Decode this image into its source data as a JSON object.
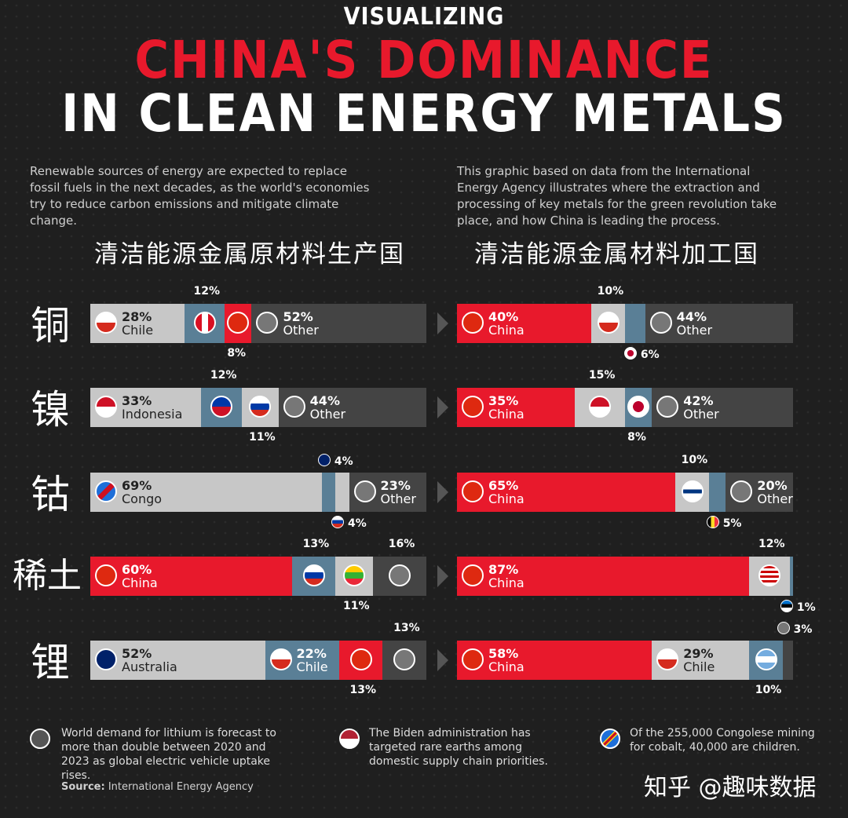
{
  "header": {
    "line1": "VISUALIZING",
    "line2": "CHINA'S DOMINANCE",
    "line3": "IN CLEAN ENERGY METALS"
  },
  "intro": {
    "left": "Renewable sources of energy are expected to replace fossil fuels in the next decades, as the world's economies try to reduce carbon emissions and mitigate climate change.",
    "right": "This graphic based on data from the International Energy Agency illustrates where the extraction and processing of key metals for the green revolution take place, and how China is leading the process."
  },
  "headings": {
    "left": "清洁能源金属原材料生产国",
    "right": "清洁能源金属材料加工国"
  },
  "footer": {
    "note1": "World demand for lithium is forecast to more than double between 2020 and 2023 as global electric vehicle uptake rises.",
    "note2": "The Biden administration has targeted rare earths among domestic supply chain priorities.",
    "note3": "Of the 255,000 Congolese mining for cobalt, 40,000 are children.",
    "source_label": "Source:",
    "source": "International Energy Agency",
    "watermark": "知乎 @趣味数据"
  },
  "colors": {
    "china_red": "#e8192c",
    "segment_gray": "#c7c7c7",
    "segment_blue": "#5a7f96",
    "other_dark": "#444444",
    "background": "#1f1f1f"
  },
  "chart_data": [
    {
      "type": "bar",
      "title": "清洁能源金属原材料生产国",
      "orientation": "horizontal-stacked",
      "rows": [
        {
          "metal": "铜",
          "segments": [
            {
              "label": "Chile",
              "value": 28,
              "color": "gray",
              "flag": "chile-flag"
            },
            {
              "label": "",
              "value": 12,
              "color": "blue",
              "flag": "peru-flag"
            },
            {
              "label": "",
              "value": 8,
              "color": "red",
              "flag": "china-flag"
            },
            {
              "label": "Other",
              "value": 52,
              "color": "dark",
              "flag": "globe-icon"
            }
          ]
        },
        {
          "metal": "镍",
          "segments": [
            {
              "label": "Indonesia",
              "value": 33,
              "color": "gray",
              "flag": "indonesia-flag"
            },
            {
              "label": "",
              "value": 12,
              "color": "blue",
              "flag": "philippines-flag"
            },
            {
              "label": "",
              "value": 11,
              "color": "gray",
              "flag": "russia-flag"
            },
            {
              "label": "Other",
              "value": 44,
              "color": "dark",
              "flag": "globe-icon"
            }
          ]
        },
        {
          "metal": "钴",
          "segments": [
            {
              "label": "Congo",
              "value": 69,
              "color": "gray",
              "flag": "congo-flag"
            },
            {
              "label": "",
              "value": 4,
              "color": "blue",
              "flag": "australia-flag"
            },
            {
              "label": "",
              "value": 4,
              "color": "gray",
              "flag": "russia-flag"
            },
            {
              "label": "Other",
              "value": 23,
              "color": "dark",
              "flag": "globe-icon"
            }
          ]
        },
        {
          "metal": "稀土",
          "segments": [
            {
              "label": "China",
              "value": 60,
              "color": "red",
              "flag": "china-flag"
            },
            {
              "label": "",
              "value": 13,
              "color": "blue",
              "flag": "russia-flag"
            },
            {
              "label": "",
              "value": 11,
              "color": "gray",
              "flag": "myanmar-flag"
            },
            {
              "label": "",
              "value": 16,
              "color": "dark",
              "flag": "globe-icon"
            }
          ]
        },
        {
          "metal": "锂",
          "segments": [
            {
              "label": "Australia",
              "value": 52,
              "color": "gray",
              "flag": "australia-flag"
            },
            {
              "label": "Chile",
              "value": 22,
              "color": "blue",
              "flag": "chile-flag"
            },
            {
              "label": "",
              "value": 13,
              "color": "red",
              "flag": "china-flag"
            },
            {
              "label": "",
              "value": 13,
              "color": "dark",
              "flag": "globe-icon"
            }
          ]
        }
      ]
    },
    {
      "type": "bar",
      "title": "清洁能源金属材料加工国",
      "orientation": "horizontal-stacked",
      "rows": [
        {
          "metal": "铜",
          "segments": [
            {
              "label": "China",
              "value": 40,
              "color": "red",
              "flag": "china-flag"
            },
            {
              "label": "",
              "value": 10,
              "color": "gray",
              "flag": "chile-flag"
            },
            {
              "label": "",
              "value": 6,
              "color": "blue",
              "flag": "japan-flag"
            },
            {
              "label": "Other",
              "value": 44,
              "color": "dark",
              "flag": "globe-icon"
            }
          ]
        },
        {
          "metal": "镍",
          "segments": [
            {
              "label": "China",
              "value": 35,
              "color": "red",
              "flag": "china-flag"
            },
            {
              "label": "",
              "value": 15,
              "color": "gray",
              "flag": "indonesia-flag"
            },
            {
              "label": "",
              "value": 8,
              "color": "blue",
              "flag": "japan-flag"
            },
            {
              "label": "Other",
              "value": 42,
              "color": "dark",
              "flag": "globe-icon"
            }
          ]
        },
        {
          "metal": "钴",
          "segments": [
            {
              "label": "China",
              "value": 65,
              "color": "red",
              "flag": "china-flag"
            },
            {
              "label": "",
              "value": 10,
              "color": "gray",
              "flag": "finland-flag"
            },
            {
              "label": "",
              "value": 5,
              "color": "blue",
              "flag": "belgium-flag"
            },
            {
              "label": "Other",
              "value": 20,
              "color": "dark",
              "flag": "globe-icon"
            }
          ]
        },
        {
          "metal": "稀土",
          "segments": [
            {
              "label": "China",
              "value": 87,
              "color": "red",
              "flag": "china-flag"
            },
            {
              "label": "",
              "value": 12,
              "color": "gray",
              "flag": "malaysia-flag"
            },
            {
              "label": "",
              "value": 1,
              "color": "blue",
              "flag": "estonia-flag"
            }
          ]
        },
        {
          "metal": "锂",
          "segments": [
            {
              "label": "China",
              "value": 58,
              "color": "red",
              "flag": "china-flag"
            },
            {
              "label": "Chile",
              "value": 29,
              "color": "gray",
              "flag": "chile-flag"
            },
            {
              "label": "",
              "value": 10,
              "color": "blue",
              "flag": "argentina-flag"
            },
            {
              "label": "",
              "value": 3,
              "color": "dark",
              "flag": "globe-icon"
            }
          ]
        }
      ]
    }
  ]
}
